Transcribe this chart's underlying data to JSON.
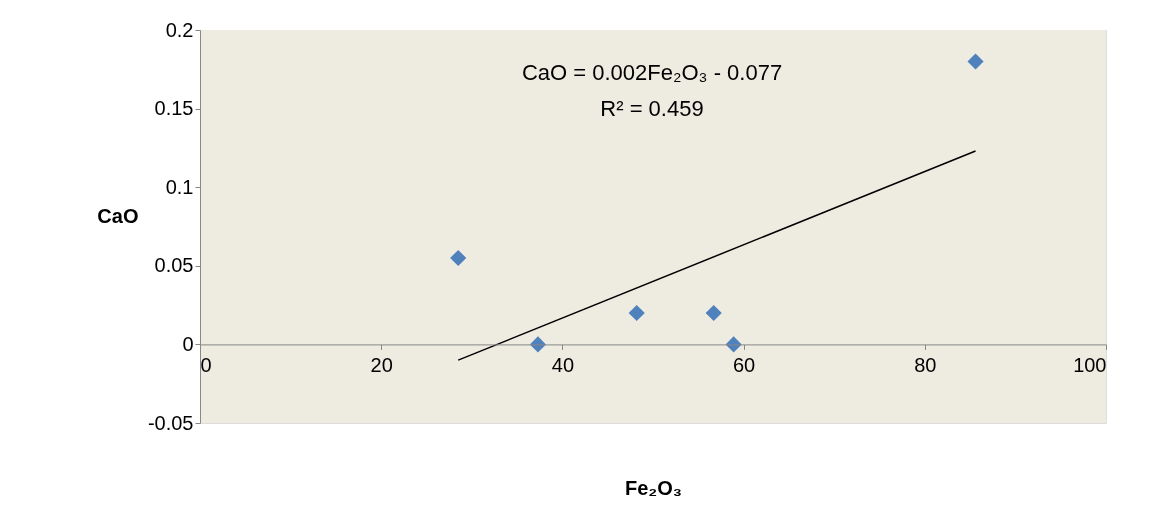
{
  "chart_data": {
    "type": "scatter",
    "xlabel": "Fe₂O₃",
    "ylabel": "CaO",
    "annotations": [
      "CaO = 0.002Fe₂O₃ - 0.077",
      "R² = 0.459"
    ],
    "xlim": [
      0,
      100
    ],
    "ylim": [
      -0.05,
      0.2
    ],
    "xticks": [
      0,
      20,
      40,
      60,
      80,
      100
    ],
    "yticks": [
      -0.05,
      0,
      0.05,
      0.1,
      0.15,
      0.2
    ],
    "grid": false,
    "series": [
      {
        "marker": "diamond",
        "color": "#4f81bd",
        "x": [
          28.5,
          37.3,
          48.2,
          56.7,
          58.9,
          85.6
        ],
        "values": [
          0.055,
          0,
          0.02,
          0.02,
          0,
          0.18
        ]
      },
      {
        "type": "line",
        "marker": "none",
        "color": "#000000",
        "x": [
          28.5,
          85.6
        ],
        "values": [
          -0.01,
          0.123
        ]
      }
    ]
  }
}
